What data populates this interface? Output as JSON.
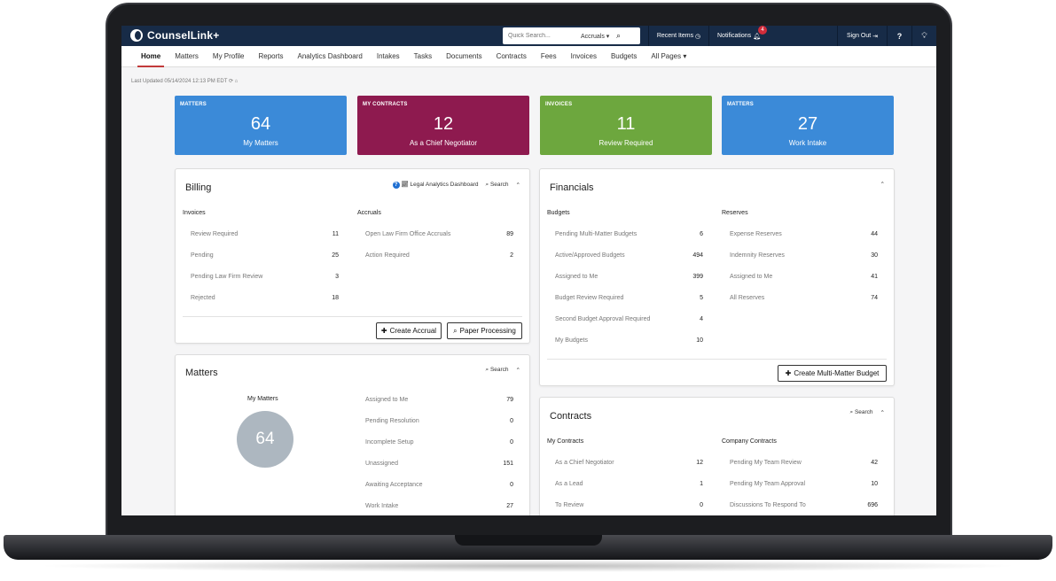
{
  "app": {
    "logo": "CounselLink+",
    "search_placeholder": "Quick Search...",
    "search_scope": "Accruals",
    "recent_items": "Recent Items",
    "notifications": "Notifications",
    "notifications_count": "4",
    "sign_out": "Sign Out",
    "help": "?",
    "tip": "❓"
  },
  "nav": [
    "Home",
    "Matters",
    "My Profile",
    "Reports",
    "Analytics Dashboard",
    "Intakes",
    "Tasks",
    "Documents",
    "Contracts",
    "Fees",
    "Invoices",
    "Budgets",
    "All Pages"
  ],
  "last_updated": "Last Updated 05/14/2024 12:13 PM EDT",
  "tiles": [
    {
      "label": "MATTERS",
      "value": "64",
      "sub": "My Matters",
      "color": "#3b8ad8"
    },
    {
      "label": "MY CONTRACTS",
      "value": "12",
      "sub": "As a Chief Negotiator",
      "color": "#8e1a4f"
    },
    {
      "label": "INVOICES",
      "value": "11",
      "sub": "Review Required",
      "color": "#6da73e"
    },
    {
      "label": "MATTERS",
      "value": "27",
      "sub": "Work Intake",
      "color": "#3b8ad8"
    }
  ],
  "billing": {
    "title": "Billing",
    "analytics_link": "Legal Analytics Dashboard",
    "search": "Search",
    "invoices_head": "Invoices",
    "invoices": [
      {
        "label": "Review Required",
        "value": "11"
      },
      {
        "label": "Pending",
        "value": "25"
      },
      {
        "label": "Pending Law Firm Review",
        "value": "3"
      },
      {
        "label": "Rejected",
        "value": "18"
      }
    ],
    "accruals_head": "Accruals",
    "accruals": [
      {
        "label": "Open Law Firm Office Accruals",
        "value": "89"
      },
      {
        "label": "Action Required",
        "value": "2"
      }
    ],
    "create_accrual": "Create Accrual",
    "paper_processing": "Paper Processing"
  },
  "financials": {
    "title": "Financials",
    "budgets_head": "Budgets",
    "budgets": [
      {
        "label": "Pending Multi-Matter Budgets",
        "value": "6"
      },
      {
        "label": "Active/Approved Budgets",
        "value": "494"
      },
      {
        "label": "Assigned to Me",
        "value": "399"
      },
      {
        "label": "Budget Review Required",
        "value": "5"
      },
      {
        "label": "Second Budget Approval Required",
        "value": "4"
      },
      {
        "label": "My Budgets",
        "value": "10"
      }
    ],
    "reserves_head": "Reserves",
    "reserves": [
      {
        "label": "Expense Reserves",
        "value": "44"
      },
      {
        "label": "Indemnity Reserves",
        "value": "30"
      },
      {
        "label": "Assigned to Me",
        "value": "41"
      },
      {
        "label": "All Reserves",
        "value": "74"
      }
    ],
    "create_budget": "Create Multi-Matter Budget"
  },
  "matters": {
    "title": "Matters",
    "search": "Search",
    "my_matters_label": "My Matters",
    "my_matters_value": "64",
    "items": [
      {
        "label": "Assigned to Me",
        "value": "79"
      },
      {
        "label": "Pending Resolution",
        "value": "0"
      },
      {
        "label": "Incomplete Setup",
        "value": "0"
      },
      {
        "label": "Unassigned",
        "value": "151"
      },
      {
        "label": "Awaiting Acceptance",
        "value": "0"
      },
      {
        "label": "Work Intake",
        "value": "27"
      }
    ]
  },
  "contracts": {
    "title": "Contracts",
    "search": "Search",
    "my_head": "My Contracts",
    "my": [
      {
        "label": "As a Chief Negotiator",
        "value": "12"
      },
      {
        "label": "As a Lead",
        "value": "1"
      },
      {
        "label": "To Review",
        "value": "0"
      }
    ],
    "company_head": "Company Contracts",
    "company": [
      {
        "label": "Pending My Team Review",
        "value": "42"
      },
      {
        "label": "Pending My Team Approval",
        "value": "10"
      },
      {
        "label": "Discussions To Respond To",
        "value": "696"
      }
    ]
  }
}
